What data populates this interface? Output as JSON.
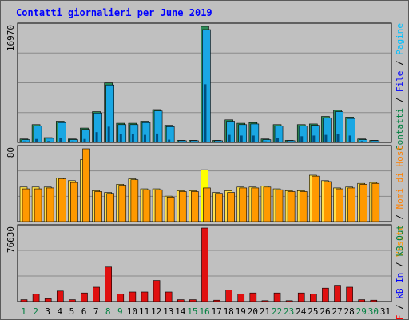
{
  "title": "Contatti giornalieri per June 2019",
  "colors": {
    "hits": "#1aa7e3",
    "hits_dark": "#0067a6",
    "files": "#2e8b57",
    "pages": "#004f7f",
    "visits": "#ff9900",
    "visits_light": "#ffe04a",
    "sites": "#ffff00",
    "kbytes": "#e01010",
    "grid": "#8a8a8a",
    "text_blue": "#0000ff",
    "text_green": "#008040"
  },
  "right_legends": {
    "top": [
      {
        "text": "Contatti",
        "color": "#008040"
      },
      {
        "text": " / ",
        "color": "#000000"
      },
      {
        "text": "File",
        "color": "#0000ff"
      },
      {
        "text": " / ",
        "color": "#000000"
      },
      {
        "text": "Pagine",
        "color": "#00c0ff"
      }
    ],
    "mid": [
      {
        "text": "Visite",
        "color": "#ff9900"
      },
      {
        "text": " / ",
        "color": "#000000"
      },
      {
        "text": "Nomi di Host",
        "color": "#ff8000"
      }
    ],
    "bottom": [
      {
        "text": "kB F",
        "color": "#ff0000"
      },
      {
        "text": " / ",
        "color": "#000000"
      },
      {
        "text": "kB In",
        "color": "#0000ff"
      },
      {
        "text": " / ",
        "color": "#000000"
      },
      {
        "text": "kB Out",
        "color": "#008040"
      }
    ]
  },
  "chart_data": [
    {
      "type": "bar",
      "panel": "top",
      "y_axis_label": "16970",
      "ylim": [
        0,
        16970
      ],
      "categories": [
        "1",
        "2",
        "3",
        "4",
        "5",
        "6",
        "7",
        "8",
        "9",
        "10",
        "11",
        "12",
        "13",
        "14",
        "15",
        "16",
        "17",
        "18",
        "19",
        "20",
        "21",
        "22",
        "23",
        "24",
        "25",
        "26",
        "27",
        "28",
        "29",
        "30",
        "31"
      ],
      "series": [
        {
          "name": "Contatti",
          "values": [
            500,
            2600,
            700,
            3100,
            500,
            2100,
            4500,
            8700,
            2800,
            2800,
            3100,
            4800,
            2500,
            300,
            300,
            16970,
            300,
            3300,
            2800,
            2900,
            500,
            2600,
            300,
            2600,
            2700,
            3800,
            4700,
            3700,
            500,
            300,
            0
          ]
        },
        {
          "name": "File",
          "values": [
            400,
            2400,
            600,
            2900,
            400,
            1900,
            4300,
            8400,
            2600,
            2600,
            2900,
            4600,
            2300,
            250,
            250,
            16500,
            250,
            3100,
            2600,
            2700,
            400,
            2400,
            250,
            2400,
            2500,
            3600,
            4500,
            3500,
            400,
            250,
            0
          ]
        },
        {
          "name": "Pagine",
          "values": [
            150,
            500,
            200,
            700,
            150,
            500,
            1500,
            2300,
            1200,
            1200,
            1100,
            1300,
            400,
            100,
            100,
            8500,
            100,
            1100,
            1000,
            1000,
            150,
            600,
            100,
            900,
            1000,
            1100,
            1200,
            1000,
            200,
            100,
            0
          ]
        }
      ]
    },
    {
      "type": "bar",
      "panel": "middle",
      "y_axis_label": "80",
      "ylim": [
        0,
        80
      ],
      "categories": [
        "1",
        "2",
        "3",
        "4",
        "5",
        "6",
        "7",
        "8",
        "9",
        "10",
        "11",
        "12",
        "13",
        "14",
        "15",
        "16",
        "17",
        "18",
        "19",
        "20",
        "21",
        "22",
        "23",
        "24",
        "25",
        "26",
        "27",
        "28",
        "29",
        "30",
        "31"
      ],
      "series": [
        {
          "name": "Visite",
          "values": [
            38,
            38,
            38,
            48,
            45,
            68,
            34,
            32,
            41,
            47,
            36,
            36,
            28,
            34,
            34,
            57,
            32,
            34,
            38,
            38,
            39,
            36,
            34,
            34,
            51,
            45,
            37,
            38,
            42,
            43,
            0
          ]
        },
        {
          "name": "Nomi di Host",
          "values": [
            36,
            36,
            37,
            47,
            43,
            80,
            33,
            31,
            40,
            46,
            35,
            35,
            27,
            33,
            33,
            37,
            31,
            32,
            37,
            37,
            38,
            35,
            33,
            33,
            50,
            44,
            36,
            37,
            41,
            42,
            0
          ]
        }
      ]
    },
    {
      "type": "bar",
      "panel": "bottom",
      "y_axis_label": "76630",
      "ylim": [
        0,
        76630
      ],
      "categories": [
        "1",
        "2",
        "3",
        "4",
        "5",
        "6",
        "7",
        "8",
        "9",
        "10",
        "11",
        "12",
        "13",
        "14",
        "15",
        "16",
        "17",
        "18",
        "19",
        "20",
        "21",
        "22",
        "23",
        "24",
        "25",
        "26",
        "27",
        "28",
        "29",
        "30",
        "31"
      ],
      "series": [
        {
          "name": "kB F",
          "values": [
            2000,
            8000,
            3000,
            11000,
            2000,
            9000,
            15000,
            36000,
            8000,
            10000,
            10000,
            22000,
            10000,
            2000,
            2000,
            76630,
            1500,
            12000,
            8000,
            9000,
            1000,
            9000,
            1000,
            9000,
            8000,
            14000,
            17000,
            15000,
            2000,
            1500,
            0
          ]
        }
      ]
    }
  ],
  "x_labels": [
    {
      "text": "1",
      "color": "#008040"
    },
    {
      "text": "2",
      "color": "#008040"
    },
    {
      "text": "3",
      "color": "#000000"
    },
    {
      "text": "4",
      "color": "#000000"
    },
    {
      "text": "5",
      "color": "#000000"
    },
    {
      "text": "6",
      "color": "#000000"
    },
    {
      "text": "7",
      "color": "#000000"
    },
    {
      "text": "8",
      "color": "#008040"
    },
    {
      "text": "9",
      "color": "#008040"
    },
    {
      "text": "10",
      "color": "#000000"
    },
    {
      "text": "11",
      "color": "#000000"
    },
    {
      "text": "12",
      "color": "#000000"
    },
    {
      "text": "13",
      "color": "#000000"
    },
    {
      "text": "14",
      "color": "#000000"
    },
    {
      "text": "15",
      "color": "#008040"
    },
    {
      "text": "16",
      "color": "#008040"
    },
    {
      "text": "17",
      "color": "#000000"
    },
    {
      "text": "18",
      "color": "#000000"
    },
    {
      "text": "19",
      "color": "#000000"
    },
    {
      "text": "20",
      "color": "#000000"
    },
    {
      "text": "21",
      "color": "#000000"
    },
    {
      "text": "22",
      "color": "#008040"
    },
    {
      "text": "23",
      "color": "#008040"
    },
    {
      "text": "24",
      "color": "#000000"
    },
    {
      "text": "25",
      "color": "#000000"
    },
    {
      "text": "26",
      "color": "#000000"
    },
    {
      "text": "27",
      "color": "#000000"
    },
    {
      "text": "28",
      "color": "#000000"
    },
    {
      "text": "29",
      "color": "#008040"
    },
    {
      "text": "30",
      "color": "#008040"
    },
    {
      "text": "31",
      "color": "#000000"
    }
  ]
}
